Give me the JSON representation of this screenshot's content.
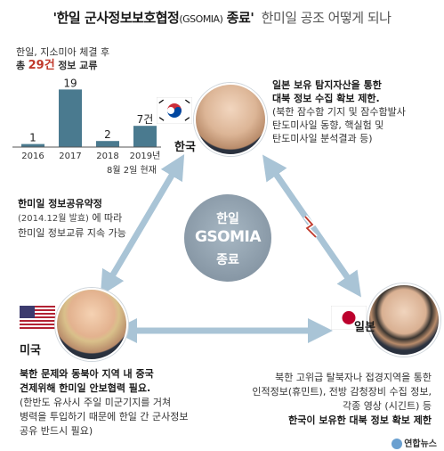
{
  "header": {
    "title_main_1": "'한일 군사정보보호협정",
    "title_abbr": "(GSOMIA)",
    "title_main_2": "종료'",
    "title_sub": "한미일 공조 어떻게 되나"
  },
  "chart_data": {
    "type": "bar",
    "title_line1": "한일, 지소미아 체결 후",
    "title_line2_prefix": "총",
    "title_line2_number": "29건",
    "title_line2_suffix": "정보 교류",
    "categories": [
      "2016",
      "2017",
      "2018",
      "2019년"
    ],
    "category_note": "8월 2일 현재",
    "values": [
      1,
      19,
      2,
      7
    ],
    "value_labels": [
      "1",
      "19",
      "2",
      "7건"
    ],
    "ylim": [
      0,
      20
    ],
    "bar_color": "#4a7a8f",
    "grid": false
  },
  "korea": {
    "label": "한국",
    "desc_line1": "일본 보유 탐지자산을 통한",
    "desc_line2": "대북 정보 수집 확보 제한.",
    "desc_line3": "(북한 잠수함 기지 및 잠수함발사",
    "desc_line4": "탄도미사일 동향, 핵실험 및",
    "desc_line5": "탄도미사일 분석결과 등)"
  },
  "center": {
    "line1": "한일",
    "line2": "GSOMIA",
    "line3": "종료"
  },
  "left_note": {
    "line1": "한미일 정보공유약정",
    "line2_paren": "(2014.12월 발효)",
    "line2_rest": "에 따라",
    "line3": "한미일 정보교류 지속 가능"
  },
  "usa": {
    "label": "미국",
    "desc_line1": "북한 문제와 동북아 지역 내 중국",
    "desc_line2": "견제위해 한미일 안보협력 필요.",
    "desc_line3": "(한반도 유사시 주일 미군기지를 거쳐",
    "desc_line4": "병력을 투입하기 때문에 한일 간 군사정보",
    "desc_line5": "공유 반드시 필요)"
  },
  "japan": {
    "label": "일본",
    "desc_line1": "북한 고위급 탈북자나 접경지역을 통한",
    "desc_line2": "인적정보(휴민트), 전방 감청장비 수집 정보,",
    "desc_line3": "각종 영상 (시긴트) 등",
    "desc_line4": "한국이 보유한 대북 정보 확보 제한"
  },
  "source": {
    "logo_text": "연합뉴스"
  },
  "colors": {
    "arrow": "#a9c4d6",
    "bar": "#4a7a8f",
    "accent_red": "#c0392b",
    "circle": "#8898a6"
  }
}
